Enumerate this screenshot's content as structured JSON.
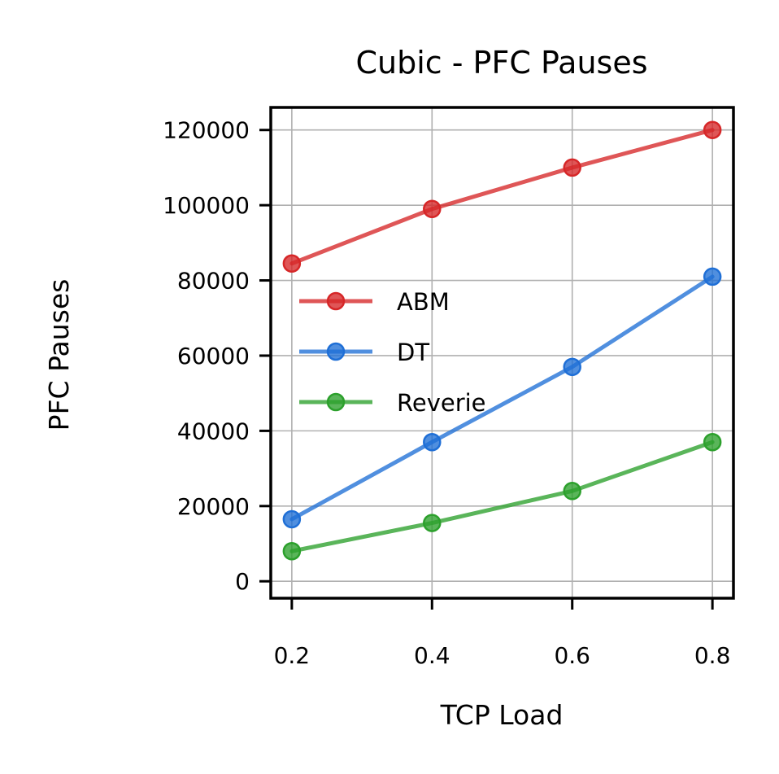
{
  "chart_data": {
    "type": "line",
    "title": "Cubic - PFC Pauses",
    "xlabel": "TCP Load",
    "ylabel": "PFC Pauses",
    "x": [
      0.2,
      0.4,
      0.6,
      0.8
    ],
    "x_tick_labels": [
      "0.2",
      "0.4",
      "0.6",
      "0.8"
    ],
    "xlim": [
      0.17,
      0.83
    ],
    "y_ticks": [
      0,
      20000,
      40000,
      60000,
      80000,
      100000,
      120000
    ],
    "y_tick_labels": [
      "0",
      "20000",
      "40000",
      "60000",
      "80000",
      "100000",
      "120000"
    ],
    "ylim": [
      -4500,
      126000
    ],
    "grid": true,
    "legend_position": "center-left",
    "series": [
      {
        "name": "ABM",
        "color": "#d62728",
        "values": [
          84500,
          99000,
          110000,
          120000
        ]
      },
      {
        "name": "DT",
        "color": "#1f6fd6",
        "values": [
          16500,
          37000,
          57000,
          81000
        ]
      },
      {
        "name": "Reverie",
        "color": "#2ca02c",
        "values": [
          8000,
          15500,
          24000,
          37000
        ]
      }
    ]
  }
}
